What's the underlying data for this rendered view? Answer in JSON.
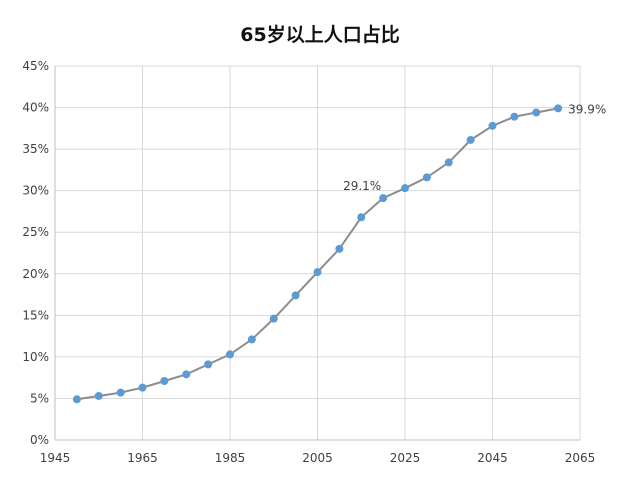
{
  "chart_data": {
    "type": "line",
    "title": "65岁以上人口占比",
    "xlabel": "",
    "ylabel": "",
    "xlim": [
      1945,
      2065
    ],
    "ylim": [
      0,
      45
    ],
    "x_ticks": [
      "1945",
      "1965",
      "1985",
      "2005",
      "2025",
      "2045",
      "2065"
    ],
    "y_ticks": [
      "0%",
      "5%",
      "10%",
      "15%",
      "20%",
      "25%",
      "30%",
      "35%",
      "40%",
      "45%"
    ],
    "grid": true,
    "legend": "none",
    "series": [
      {
        "color": "#8c8c8c",
        "marker_color": "#5b9bd5",
        "x": [
          1950,
          1955,
          1960,
          1965,
          1970,
          1975,
          1980,
          1985,
          1990,
          1995,
          2000,
          2005,
          2010,
          2015,
          2020,
          2025,
          2030,
          2035,
          2040,
          2045,
          2050,
          2055,
          2060
        ],
        "y": [
          4.9,
          5.3,
          5.7,
          6.3,
          7.1,
          7.9,
          9.1,
          10.3,
          12.1,
          14.6,
          17.4,
          20.2,
          23.0,
          26.8,
          29.1,
          30.3,
          31.6,
          33.4,
          36.1,
          37.8,
          38.9,
          39.4,
          39.9
        ],
        "data_labels": [
          {
            "index": 14,
            "text": "29.1%"
          },
          {
            "index": 22,
            "text": "39.9%"
          }
        ]
      }
    ]
  }
}
